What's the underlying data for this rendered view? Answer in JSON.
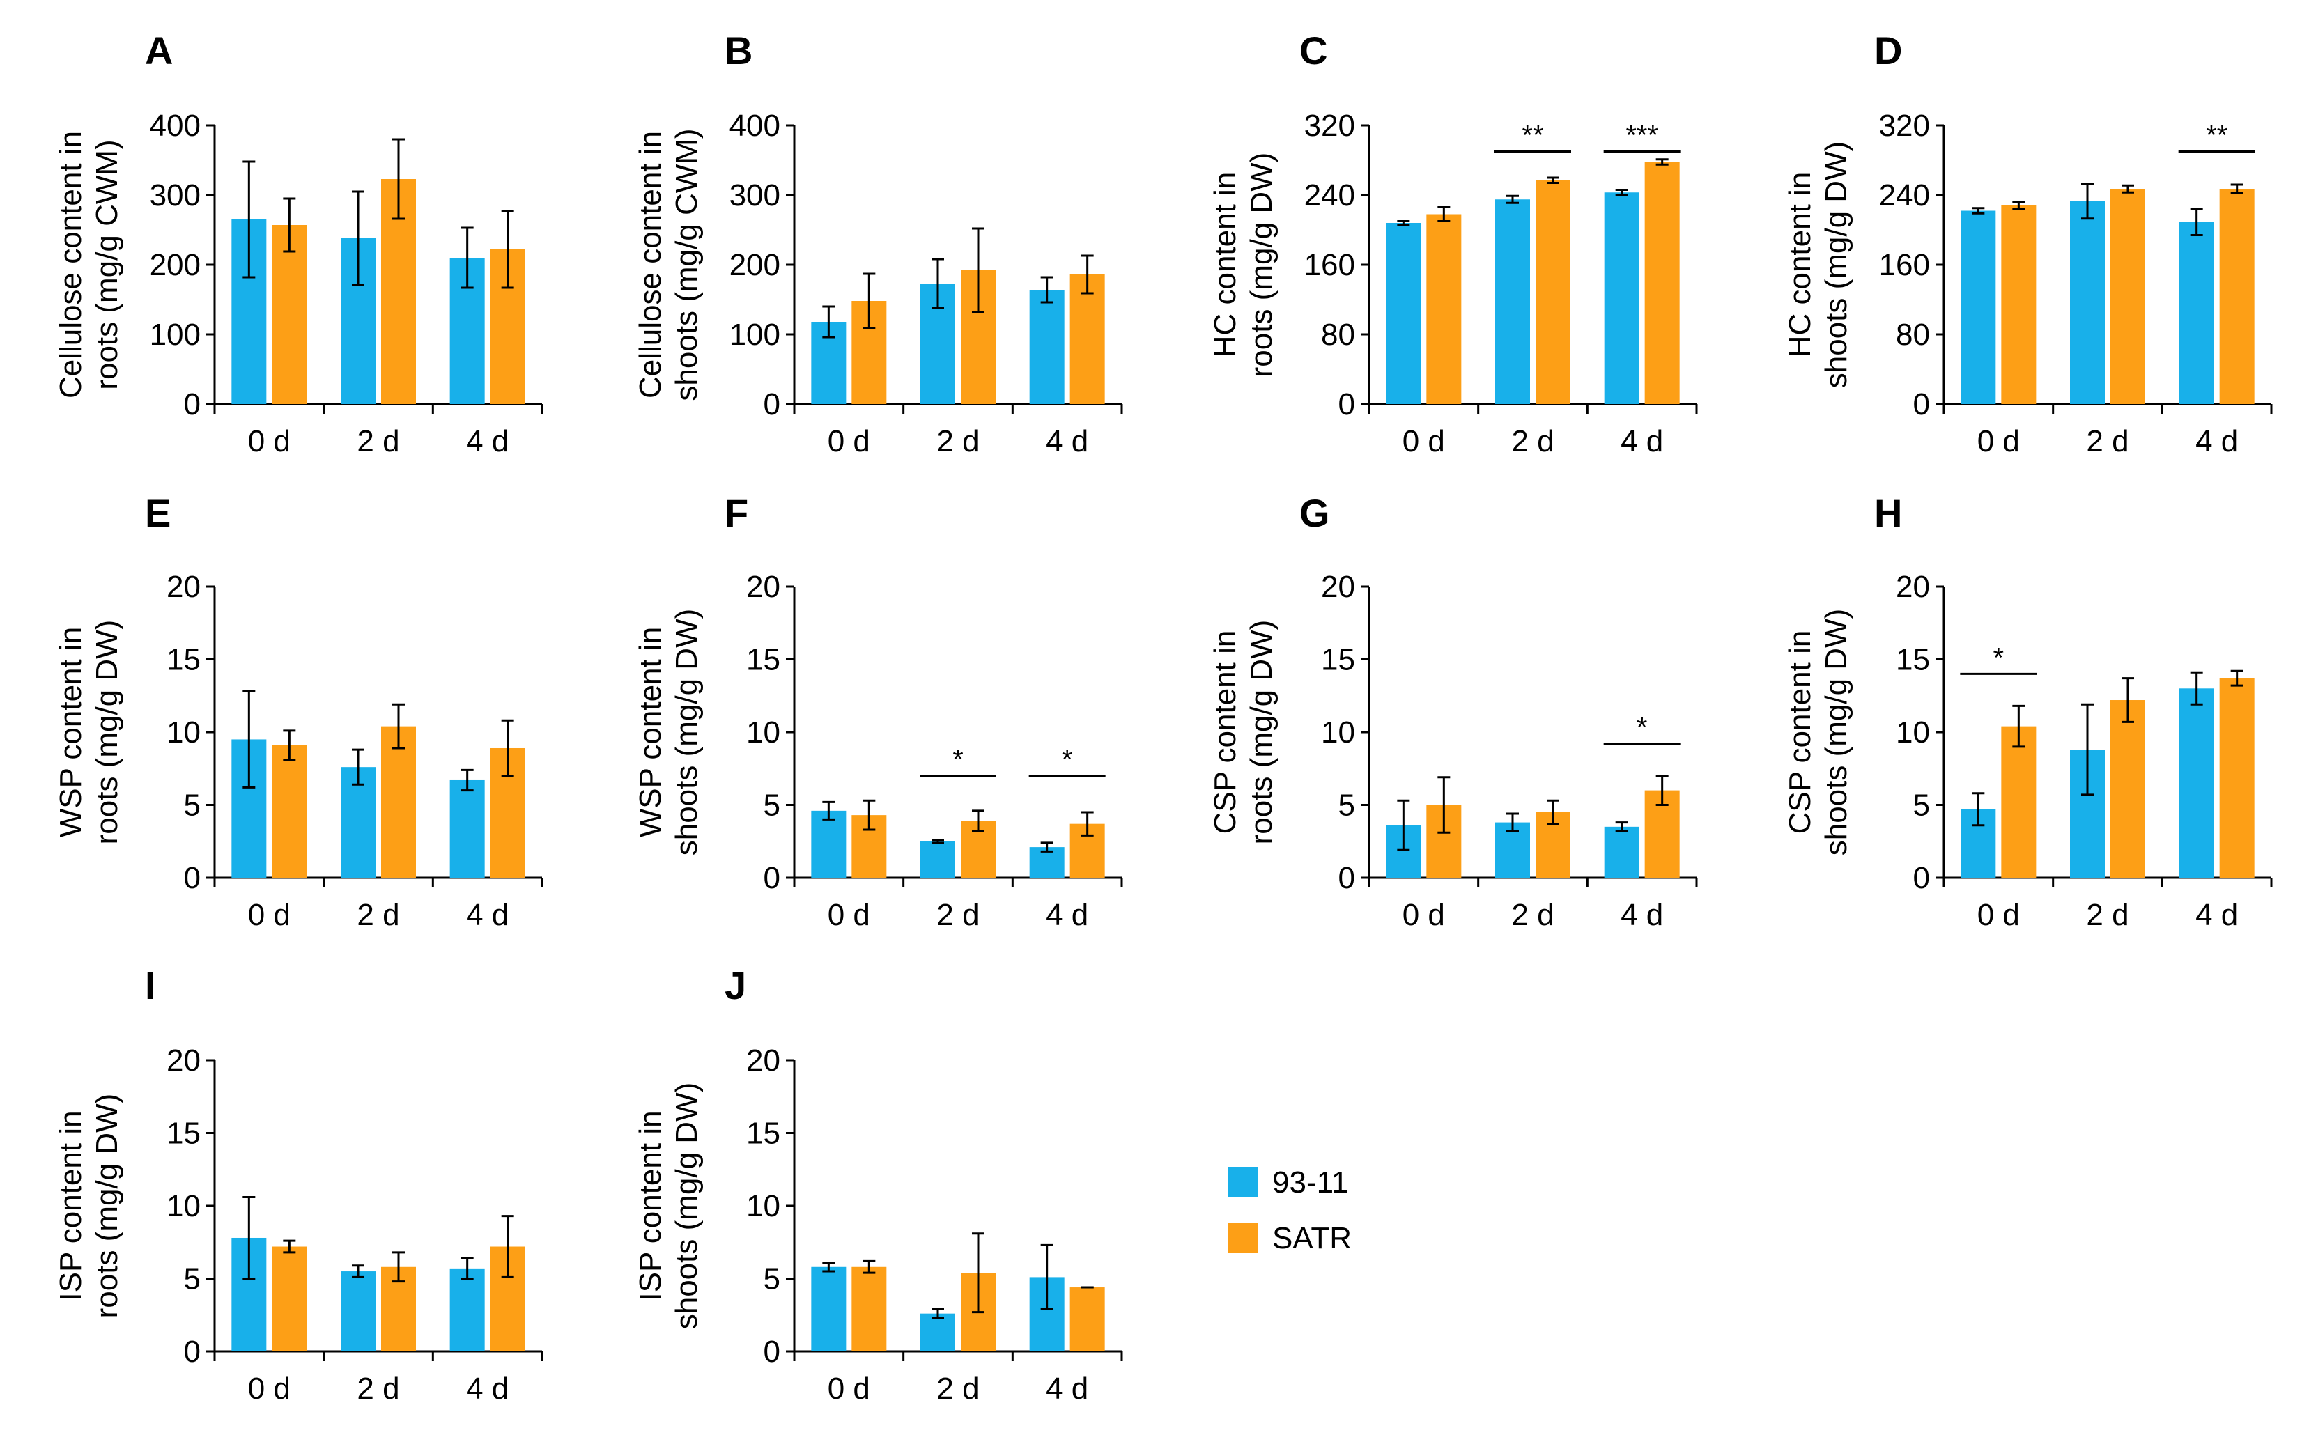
{
  "colors": {
    "s1": "#18b0ea",
    "s2": "#fd9f16",
    "axis": "#000000"
  },
  "legend": [
    {
      "name": "93-11",
      "color": "#18b0ea"
    },
    {
      "name": "SATR",
      "color": "#fd9f16"
    }
  ],
  "chart_data": [
    {
      "panel": "A",
      "type": "bar",
      "ylabel_lines": [
        "Cellulose content in",
        "roots (mg/g CWM)"
      ],
      "ylim": [
        0,
        400
      ],
      "yticks": [
        0,
        100,
        200,
        300,
        400
      ],
      "categories": [
        "0 d",
        "2 d",
        "4 d"
      ],
      "series": [
        {
          "name": "93-11",
          "values": [
            265,
            238,
            210
          ],
          "errors": [
            83,
            67,
            43
          ]
        },
        {
          "name": "SATR",
          "values": [
            257,
            323,
            222
          ],
          "errors": [
            38,
            57,
            55
          ]
        }
      ],
      "significance": []
    },
    {
      "panel": "B",
      "type": "bar",
      "ylabel_lines": [
        "Cellulose content in",
        "shoots (mg/g CWM)"
      ],
      "ylim": [
        0,
        400
      ],
      "yticks": [
        0,
        100,
        200,
        300,
        400
      ],
      "categories": [
        "0 d",
        "2 d",
        "4 d"
      ],
      "series": [
        {
          "name": "93-11",
          "values": [
            118,
            173,
            164
          ],
          "errors": [
            22,
            35,
            18
          ]
        },
        {
          "name": "SATR",
          "values": [
            148,
            192,
            186
          ],
          "errors": [
            39,
            60,
            27
          ]
        }
      ],
      "significance": []
    },
    {
      "panel": "C",
      "type": "bar",
      "ylabel_lines": [
        "HC content in",
        "roots (mg/g DW)"
      ],
      "ylim": [
        0,
        320
      ],
      "yticks": [
        0,
        80,
        160,
        240,
        320
      ],
      "categories": [
        "0 d",
        "2 d",
        "4 d"
      ],
      "series": [
        {
          "name": "93-11",
          "values": [
            208,
            235,
            243
          ],
          "errors": [
            2,
            4,
            3
          ]
        },
        {
          "name": "SATR",
          "values": [
            218,
            257,
            278
          ],
          "errors": [
            8,
            3,
            3
          ]
        }
      ],
      "significance": [
        {
          "category": 1,
          "label": "**",
          "y": 290
        },
        {
          "category": 2,
          "label": "***",
          "y": 290
        }
      ]
    },
    {
      "panel": "D",
      "type": "bar",
      "ylabel_lines": [
        "HC content in",
        "shoots (mg/g DW)"
      ],
      "ylim": [
        0,
        320
      ],
      "yticks": [
        0,
        80,
        160,
        240,
        320
      ],
      "categories": [
        "0 d",
        "2 d",
        "4 d"
      ],
      "series": [
        {
          "name": "93-11",
          "values": [
            222,
            233,
            209
          ],
          "errors": [
            3,
            20,
            15
          ]
        },
        {
          "name": "SATR",
          "values": [
            228,
            247,
            247
          ],
          "errors": [
            4,
            4,
            5
          ]
        }
      ],
      "significance": [
        {
          "category": 2,
          "label": "**",
          "y": 290
        }
      ]
    },
    {
      "panel": "E",
      "type": "bar",
      "ylabel_lines": [
        "WSP content in",
        "roots (mg/g DW)"
      ],
      "ylim": [
        0,
        20
      ],
      "yticks": [
        0,
        5,
        10,
        15,
        20
      ],
      "categories": [
        "0 d",
        "2 d",
        "4 d"
      ],
      "series": [
        {
          "name": "93-11",
          "values": [
            9.5,
            7.6,
            6.7
          ],
          "errors": [
            3.3,
            1.2,
            0.7
          ]
        },
        {
          "name": "SATR",
          "values": [
            9.1,
            10.4,
            8.9
          ],
          "errors": [
            1.0,
            1.5,
            1.9
          ]
        }
      ],
      "significance": []
    },
    {
      "panel": "F",
      "type": "bar",
      "ylabel_lines": [
        "WSP content in",
        "shoots (mg/g DW)"
      ],
      "ylim": [
        0,
        20
      ],
      "yticks": [
        0,
        5,
        10,
        15,
        20
      ],
      "categories": [
        "0 d",
        "2 d",
        "4 d"
      ],
      "series": [
        {
          "name": "93-11",
          "values": [
            4.6,
            2.5,
            2.1
          ],
          "errors": [
            0.6,
            0.1,
            0.3
          ]
        },
        {
          "name": "SATR",
          "values": [
            4.3,
            3.9,
            3.7
          ],
          "errors": [
            1.0,
            0.7,
            0.8
          ]
        }
      ],
      "significance": [
        {
          "category": 1,
          "label": "*",
          "y": 7
        },
        {
          "category": 2,
          "label": "*",
          "y": 7
        }
      ]
    },
    {
      "panel": "G",
      "type": "bar",
      "ylabel_lines": [
        "CSP content in",
        "roots (mg/g DW)"
      ],
      "ylim": [
        0,
        20
      ],
      "yticks": [
        0,
        5,
        10,
        15,
        20
      ],
      "categories": [
        "0 d",
        "2 d",
        "4 d"
      ],
      "series": [
        {
          "name": "93-11",
          "values": [
            3.6,
            3.8,
            3.5
          ],
          "errors": [
            1.7,
            0.6,
            0.3
          ]
        },
        {
          "name": "SATR",
          "values": [
            5.0,
            4.5,
            6.0
          ],
          "errors": [
            1.9,
            0.8,
            1.0
          ]
        }
      ],
      "significance": [
        {
          "category": 2,
          "label": "*",
          "y": 9.2
        }
      ]
    },
    {
      "panel": "H",
      "type": "bar",
      "ylabel_lines": [
        "CSP content in",
        "shoots (mg/g DW)"
      ],
      "ylim": [
        0,
        20
      ],
      "yticks": [
        0,
        5,
        10,
        15,
        20
      ],
      "categories": [
        "0 d",
        "2 d",
        "4 d"
      ],
      "series": [
        {
          "name": "93-11",
          "values": [
            4.7,
            8.8,
            13.0
          ],
          "errors": [
            1.1,
            3.1,
            1.1
          ]
        },
        {
          "name": "SATR",
          "values": [
            10.4,
            12.2,
            13.7
          ],
          "errors": [
            1.4,
            1.5,
            0.5
          ]
        }
      ],
      "significance": [
        {
          "category": 0,
          "label": "*",
          "y": 14
        }
      ]
    },
    {
      "panel": "I",
      "type": "bar",
      "ylabel_lines": [
        "ISP content in",
        "roots (mg/g DW)"
      ],
      "ylim": [
        0,
        20
      ],
      "yticks": [
        0,
        5,
        10,
        15,
        20
      ],
      "categories": [
        "0 d",
        "2 d",
        "4 d"
      ],
      "series": [
        {
          "name": "93-11",
          "values": [
            7.8,
            5.5,
            5.7
          ],
          "errors": [
            2.8,
            0.4,
            0.7
          ]
        },
        {
          "name": "SATR",
          "values": [
            7.2,
            5.8,
            7.2
          ],
          "errors": [
            0.4,
            1.0,
            2.1
          ]
        }
      ],
      "significance": []
    },
    {
      "panel": "J",
      "type": "bar",
      "ylabel_lines": [
        "ISP content in",
        "shoots (mg/g DW)"
      ],
      "ylim": [
        0,
        20
      ],
      "yticks": [
        0,
        5,
        10,
        15,
        20
      ],
      "categories": [
        "0 d",
        "2 d",
        "4 d"
      ],
      "series": [
        {
          "name": "93-11",
          "values": [
            5.8,
            2.6,
            5.1
          ],
          "errors": [
            0.3,
            0.3,
            2.2
          ]
        },
        {
          "name": "SATR",
          "values": [
            5.8,
            5.4,
            4.4
          ],
          "errors": [
            0.4,
            2.7,
            0.0
          ]
        }
      ],
      "significance": []
    }
  ]
}
